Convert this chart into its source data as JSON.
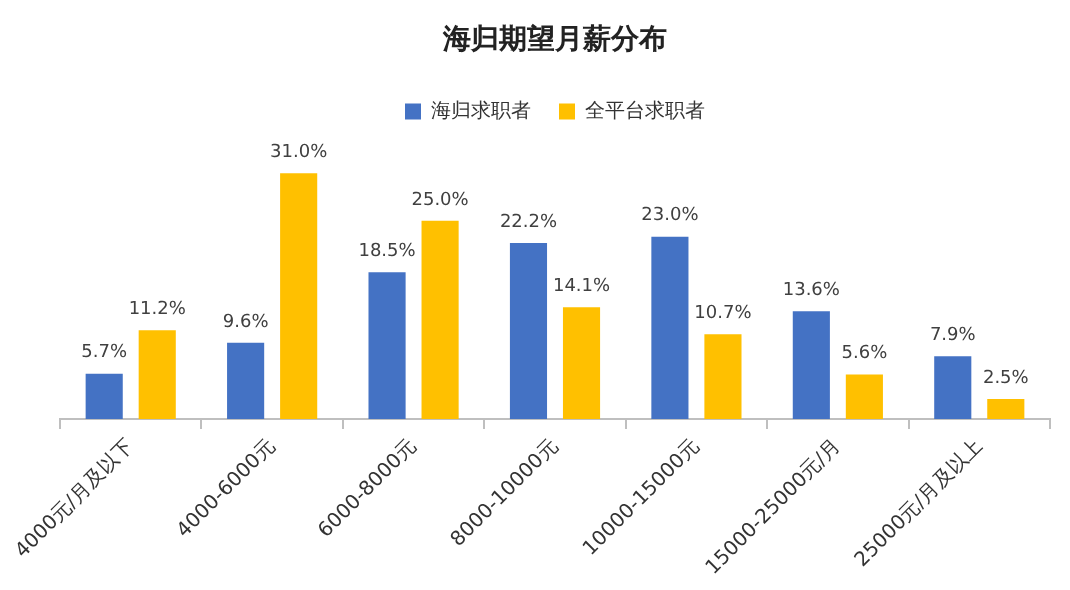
{
  "chart_data": {
    "type": "bar",
    "title": "海归期望月薪分布",
    "categories": [
      "4000元/月及以下",
      "4000-6000元",
      "6000-8000元",
      "8000-10000元",
      "10000-15000元",
      "15000-25000元/月",
      "25000元/月及以上"
    ],
    "series": [
      {
        "name": "海归求职者",
        "color": "#4472c4",
        "values": [
          5.7,
          9.6,
          18.5,
          22.2,
          23.0,
          13.6,
          7.9
        ],
        "value_labels": [
          "5.7%",
          "9.6%",
          "18.5%",
          "22.2%",
          "23.0%",
          "13.6%",
          "7.9%"
        ]
      },
      {
        "name": "全平台求职者",
        "color": "#ffc000",
        "values": [
          11.2,
          31.0,
          25.0,
          14.1,
          10.7,
          5.6,
          2.5
        ],
        "value_labels": [
          "11.2%",
          "31.0%",
          "25.0%",
          "14.1%",
          "10.7%",
          "5.6%",
          "2.5%"
        ]
      }
    ],
    "grid": false,
    "legend": "top"
  }
}
